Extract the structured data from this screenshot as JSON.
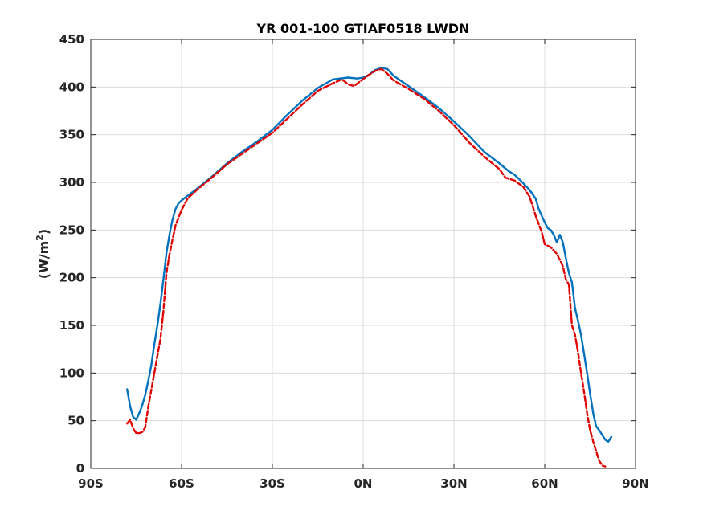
{
  "chart_data": {
    "type": "line",
    "title": "YR 001-100 GTIAF0518 LWDN",
    "xlabel": "",
    "ylabel_main": "(W/m",
    "ylabel_sup": "2",
    "ylabel_close": ")",
    "xlim": [
      -90,
      90
    ],
    "ylim": [
      0,
      450
    ],
    "grid": true,
    "x_ticks": [
      -90,
      -60,
      -30,
      0,
      30,
      60,
      90
    ],
    "x_tick_labels": [
      "90S",
      "60S",
      "30S",
      "0N",
      "30N",
      "60N",
      "90N"
    ],
    "y_ticks": [
      0,
      50,
      100,
      150,
      200,
      250,
      300,
      350,
      400,
      450
    ],
    "y_tick_labels": [
      "0",
      "50",
      "100",
      "150",
      "200",
      "250",
      "300",
      "350",
      "400",
      "450"
    ],
    "series": [
      {
        "color": "#0072BD",
        "style": "solid",
        "points": [
          [
            -78,
            83
          ],
          [
            -77,
            65
          ],
          [
            -76,
            54
          ],
          [
            -75,
            51
          ],
          [
            -74,
            58
          ],
          [
            -73,
            66
          ],
          [
            -72,
            77
          ],
          [
            -71,
            92
          ],
          [
            -70,
            108
          ],
          [
            -69,
            130
          ],
          [
            -68,
            150
          ],
          [
            -67,
            172
          ],
          [
            -66,
            198
          ],
          [
            -65,
            226
          ],
          [
            -64,
            245
          ],
          [
            -63,
            261
          ],
          [
            -62,
            272
          ],
          [
            -61,
            278
          ],
          [
            -60,
            281
          ],
          [
            -58,
            286
          ],
          [
            -55,
            293
          ],
          [
            -50,
            306
          ],
          [
            -45,
            320
          ],
          [
            -40,
            332
          ],
          [
            -35,
            343
          ],
          [
            -30,
            355
          ],
          [
            -25,
            371
          ],
          [
            -20,
            386
          ],
          [
            -15,
            399
          ],
          [
            -10,
            408
          ],
          [
            -5,
            410
          ],
          [
            -2,
            409
          ],
          [
            0,
            410
          ],
          [
            2,
            413
          ],
          [
            4,
            418
          ],
          [
            6,
            420
          ],
          [
            8,
            419
          ],
          [
            10,
            412
          ],
          [
            15,
            401
          ],
          [
            20,
            390
          ],
          [
            25,
            378
          ],
          [
            30,
            364
          ],
          [
            35,
            349
          ],
          [
            40,
            332
          ],
          [
            45,
            320
          ],
          [
            48,
            312
          ],
          [
            50,
            308
          ],
          [
            52,
            302
          ],
          [
            55,
            292
          ],
          [
            57,
            283
          ],
          [
            58,
            272
          ],
          [
            59,
            265
          ],
          [
            60,
            258
          ],
          [
            61,
            252
          ],
          [
            62,
            250
          ],
          [
            63,
            245
          ],
          [
            64,
            237
          ],
          [
            65,
            245
          ],
          [
            66,
            237
          ],
          [
            67,
            220
          ],
          [
            68,
            205
          ],
          [
            69,
            195
          ],
          [
            70,
            168
          ],
          [
            71,
            155
          ],
          [
            72,
            140
          ],
          [
            73,
            120
          ],
          [
            74,
            100
          ],
          [
            75,
            78
          ],
          [
            76,
            58
          ],
          [
            77,
            44
          ],
          [
            78,
            40
          ],
          [
            79,
            35
          ],
          [
            80,
            30
          ],
          [
            81,
            28
          ],
          [
            82,
            33
          ]
        ]
      },
      {
        "color": "#E00000",
        "style": "dashed",
        "points": [
          [
            -78,
            47
          ],
          [
            -77,
            51
          ],
          [
            -76,
            42
          ],
          [
            -75,
            37
          ],
          [
            -74,
            37
          ],
          [
            -73,
            38
          ],
          [
            -72,
            43
          ],
          [
            -71,
            65
          ],
          [
            -70,
            82
          ],
          [
            -69,
            100
          ],
          [
            -68,
            118
          ],
          [
            -67,
            135
          ],
          [
            -66,
            165
          ],
          [
            -65,
            205
          ],
          [
            -64,
            224
          ],
          [
            -63,
            240
          ],
          [
            -62,
            255
          ],
          [
            -61,
            263
          ],
          [
            -60,
            271
          ],
          [
            -58,
            283
          ],
          [
            -55,
            292
          ],
          [
            -50,
            305
          ],
          [
            -45,
            319
          ],
          [
            -40,
            330
          ],
          [
            -35,
            341
          ],
          [
            -30,
            352
          ],
          [
            -25,
            367
          ],
          [
            -20,
            382
          ],
          [
            -15,
            396
          ],
          [
            -10,
            404
          ],
          [
            -7,
            408
          ],
          [
            -5,
            403
          ],
          [
            -3,
            401
          ],
          [
            -1,
            406
          ],
          [
            2,
            413
          ],
          [
            4,
            417
          ],
          [
            6,
            419
          ],
          [
            8,
            414
          ],
          [
            10,
            407
          ],
          [
            15,
            398
          ],
          [
            20,
            388
          ],
          [
            25,
            375
          ],
          [
            30,
            360
          ],
          [
            35,
            342
          ],
          [
            40,
            327
          ],
          [
            45,
            314
          ],
          [
            47,
            305
          ],
          [
            50,
            302
          ],
          [
            53,
            295
          ],
          [
            55,
            285
          ],
          [
            57,
            265
          ],
          [
            59,
            248
          ],
          [
            60,
            235
          ],
          [
            62,
            232
          ],
          [
            64,
            225
          ],
          [
            66,
            212
          ],
          [
            67,
            198
          ],
          [
            68,
            193
          ],
          [
            69,
            150
          ],
          [
            70,
            140
          ],
          [
            71,
            122
          ],
          [
            72,
            100
          ],
          [
            73,
            80
          ],
          [
            74,
            58
          ],
          [
            75,
            40
          ],
          [
            76,
            28
          ],
          [
            77,
            18
          ],
          [
            78,
            8
          ],
          [
            79,
            3
          ],
          [
            80,
            2
          ]
        ]
      }
    ]
  }
}
